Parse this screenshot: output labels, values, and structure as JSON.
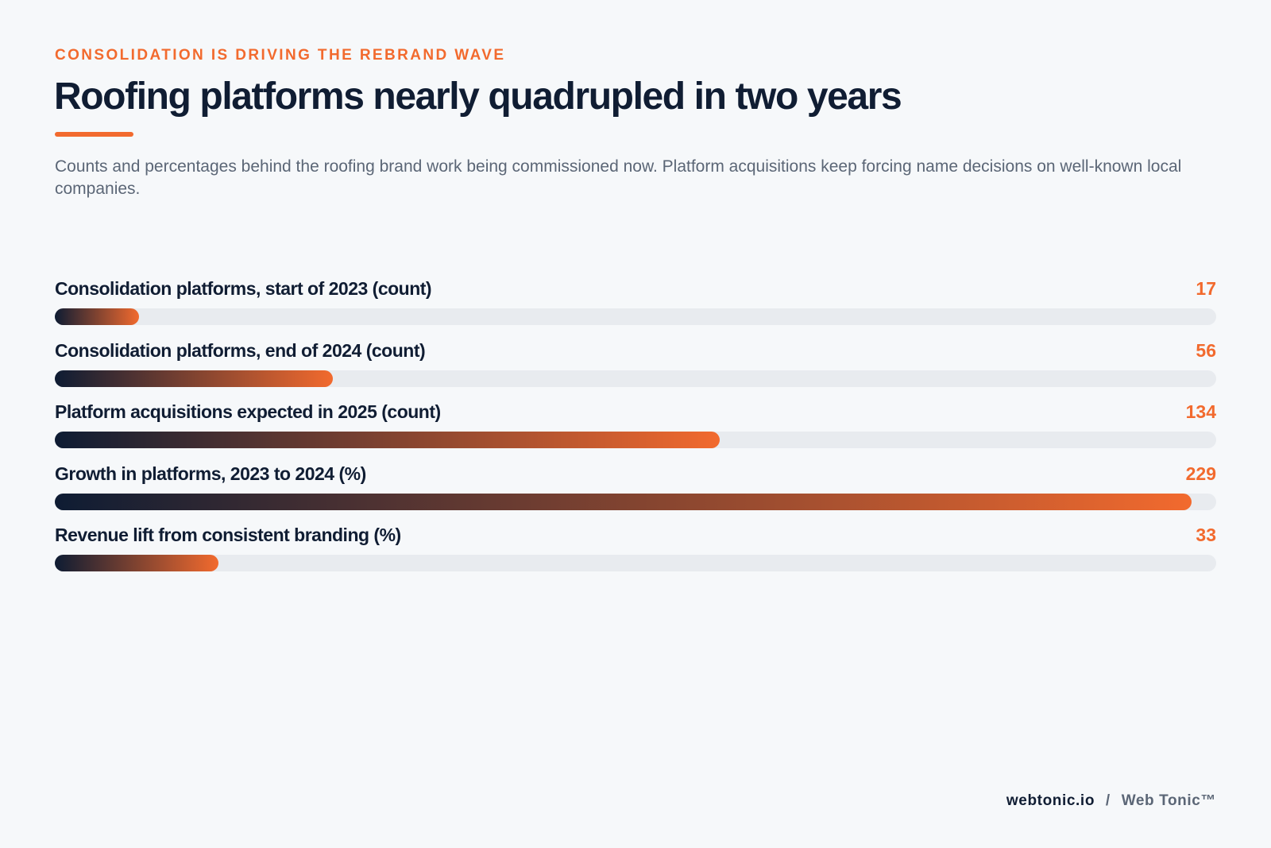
{
  "header": {
    "eyebrow": "CONSOLIDATION IS DRIVING THE REBRAND WAVE",
    "title": "Roofing platforms nearly quadrupled in two years",
    "subtitle": "Counts and percentages behind the roofing brand work being commissioned now. Platform acquisitions keep forcing name decisions on well-known local companies."
  },
  "colors": {
    "accent": "#f26a2e",
    "navy": "#101d33",
    "track": "#e8ebef"
  },
  "chart_data": {
    "type": "bar",
    "orientation": "horizontal",
    "categories": [
      "Consolidation platforms, start of 2023 (count)",
      "Consolidation platforms, end of 2024 (count)",
      "Platform acquisitions expected in 2025 (count)",
      "Growth in platforms, 2023 to 2024 (%)",
      "Revenue lift from consistent branding (%)"
    ],
    "values": [
      17,
      56,
      134,
      229,
      33
    ],
    "xlim": [
      0,
      229
    ],
    "grid": false,
    "title": "",
    "xlabel": "",
    "ylabel": ""
  },
  "footer": {
    "site": "webtonic.io",
    "separator": "/",
    "brand": "Web Tonic™"
  }
}
